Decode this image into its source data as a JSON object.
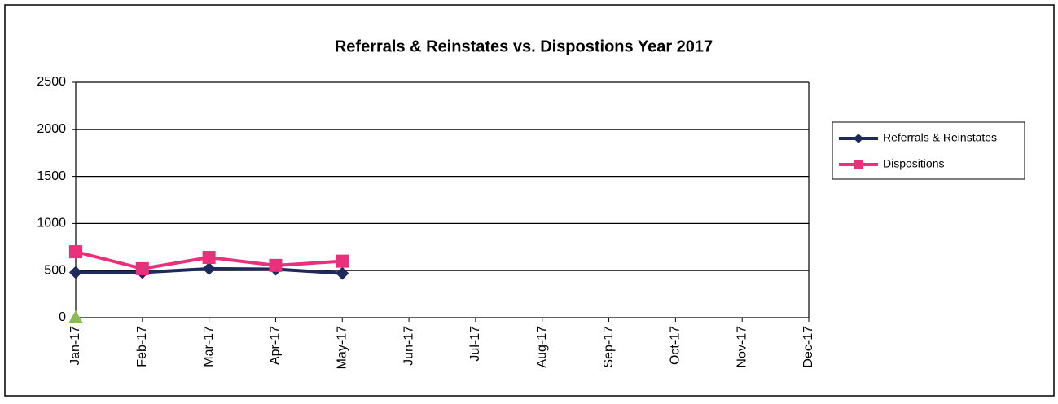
{
  "chart_data": {
    "type": "line",
    "title": "Referrals & Reinstates vs. Dispostions  Year 2017",
    "categories": [
      "Jan-17",
      "Feb-17",
      "Mar-17",
      "Apr-17",
      "May-17",
      "Jun-17",
      "Jul-17",
      "Aug-17",
      "Sep-17",
      "Oct-17",
      "Nov-17",
      "Dec-17"
    ],
    "series": [
      {
        "name": "Referrals & Reinstates",
        "color": "#1f2a5c",
        "marker": "diamond",
        "values": [
          480,
          480,
          520,
          515,
          470,
          null,
          null,
          null,
          null,
          null,
          null,
          null
        ]
      },
      {
        "name": "Dispositions",
        "color": "#e8317a",
        "marker": "square",
        "values": [
          700,
          520,
          640,
          555,
          600,
          null,
          null,
          null,
          null,
          null,
          null,
          null
        ]
      },
      {
        "color": "#8db85a",
        "marker": "triangle",
        "values": [
          0,
          null,
          null,
          null,
          null,
          null,
          null,
          null,
          null,
          null,
          null,
          null
        ]
      }
    ],
    "ylim": [
      0,
      2500
    ],
    "yticks": [
      0,
      500,
      1000,
      1500,
      2000,
      2500
    ],
    "grid": true,
    "legend": "right"
  }
}
